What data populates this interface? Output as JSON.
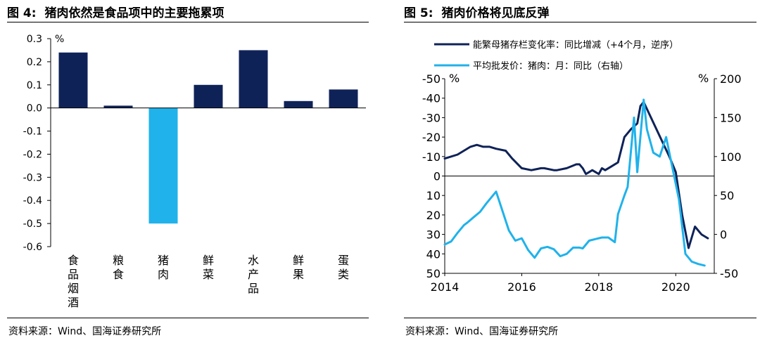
{
  "left": {
    "figure_label": "图 4:",
    "title": "猪肉依然是食品项中的主要拖累项",
    "unit": "%",
    "source": "资料来源：Wind、国海证券研究所"
  },
  "right": {
    "figure_label": "图 5:",
    "title": "猪肉价格将见底反弹",
    "unit_left": "%",
    "unit_right": "%",
    "source": "资料来源：Wind、国海证券研究所"
  },
  "colors": {
    "navy": "#0f2258",
    "cyan": "#20b2ea"
  },
  "chart_data": [
    {
      "type": "bar",
      "title": "猪肉依然是食品项中的主要拖累项",
      "ylabel": "%",
      "ylim": [
        -0.6,
        0.3
      ],
      "yticks": [
        "0.3",
        "0.2",
        "0.1",
        "0.0",
        "-0.1",
        "-0.2",
        "-0.3",
        "-0.4",
        "-0.5",
        "-0.6"
      ],
      "categories": [
        "食品烟酒",
        "粮食",
        "猪肉",
        "鲜菜",
        "水产品",
        "鲜果",
        "蛋类"
      ],
      "values": [
        0.24,
        0.01,
        -0.5,
        0.1,
        0.25,
        0.03,
        0.08
      ],
      "highlight_category": "猪肉"
    },
    {
      "type": "line",
      "title": "猪肉价格将见底反弹",
      "x_range": [
        "2014-01",
        "2020-12"
      ],
      "xticks": [
        "2014",
        "2016",
        "2018",
        "2020"
      ],
      "y_left": {
        "label": "%",
        "reversed": true,
        "range": [
          50,
          -50
        ],
        "ticks": [
          "-50",
          "-40",
          "-30",
          "-20",
          "-10",
          "0",
          "10",
          "20",
          "30",
          "40",
          "50"
        ]
      },
      "y_right": {
        "label": "%",
        "range": [
          -50,
          200
        ],
        "ticks": [
          "200",
          "150",
          "100",
          "50",
          "0",
          "-50"
        ]
      },
      "legend_position": "top",
      "series": [
        {
          "name": "能繁母猪存栏变化率：同比增减（+4个月，逆序）",
          "axis": "left",
          "x": [
            "2014-01",
            "2014-05",
            "2014-09",
            "2014-11",
            "2015-01",
            "2015-03",
            "2015-05",
            "2015-08",
            "2015-10",
            "2016-01",
            "2016-04",
            "2016-07",
            "2016-08",
            "2016-11",
            "2016-12",
            "2017-03",
            "2017-06",
            "2017-07",
            "2017-08",
            "2017-09",
            "2017-11",
            "2018-01",
            "2018-02",
            "2018-03",
            "2018-05",
            "2018-07",
            "2018-09",
            "2018-11",
            "2019-01",
            "2019-02",
            "2019-03",
            "2019-05",
            "2019-07",
            "2019-09",
            "2019-11",
            "2020-01",
            "2020-03",
            "2020-05",
            "2020-07",
            "2020-09",
            "2020-11"
          ],
          "values": [
            -9,
            -11,
            -15,
            -16,
            -15,
            -15,
            -14,
            -13,
            -9,
            -4,
            -3,
            -4,
            -4,
            -3,
            -3,
            -4,
            -6,
            -6,
            -4,
            -1,
            -3,
            -1,
            -4,
            -3,
            -5,
            -7,
            -20,
            -24,
            -27,
            -36,
            -38,
            -31,
            -24,
            -17,
            -10,
            -2,
            20,
            37,
            26,
            30,
            32
          ]
        },
        {
          "name": "平均批发价：猪肉：月：同比（右轴）",
          "axis": "right",
          "x": [
            "2014-01",
            "2014-03",
            "2014-05",
            "2014-07",
            "2014-08",
            "2014-10",
            "2014-12",
            "2015-02",
            "2015-05",
            "2015-07",
            "2015-09",
            "2015-11",
            "2016-01",
            "2016-03",
            "2016-05",
            "2016-07",
            "2016-09",
            "2016-11",
            "2017-01",
            "2017-03",
            "2017-05",
            "2017-07",
            "2017-08",
            "2017-10",
            "2017-12",
            "2018-02",
            "2018-04",
            "2018-06",
            "2018-07",
            "2018-09",
            "2018-10",
            "2018-12",
            "2019-01",
            "2019-03",
            "2019-04",
            "2019-06",
            "2019-08",
            "2019-10",
            "2019-12",
            "2020-02",
            "2020-04",
            "2020-06",
            "2020-08",
            "2020-10"
          ],
          "values": [
            -13,
            -9,
            2,
            12,
            15,
            22,
            29,
            40,
            55,
            30,
            5,
            -8,
            -5,
            -20,
            -30,
            -18,
            -16,
            -19,
            -28,
            -25,
            -17,
            -17,
            -18,
            -8,
            -6,
            -4,
            -4,
            -10,
            26,
            50,
            61,
            150,
            80,
            173,
            135,
            105,
            100,
            125,
            85,
            45,
            -25,
            -35,
            -38,
            -40
          ]
        }
      ]
    }
  ]
}
